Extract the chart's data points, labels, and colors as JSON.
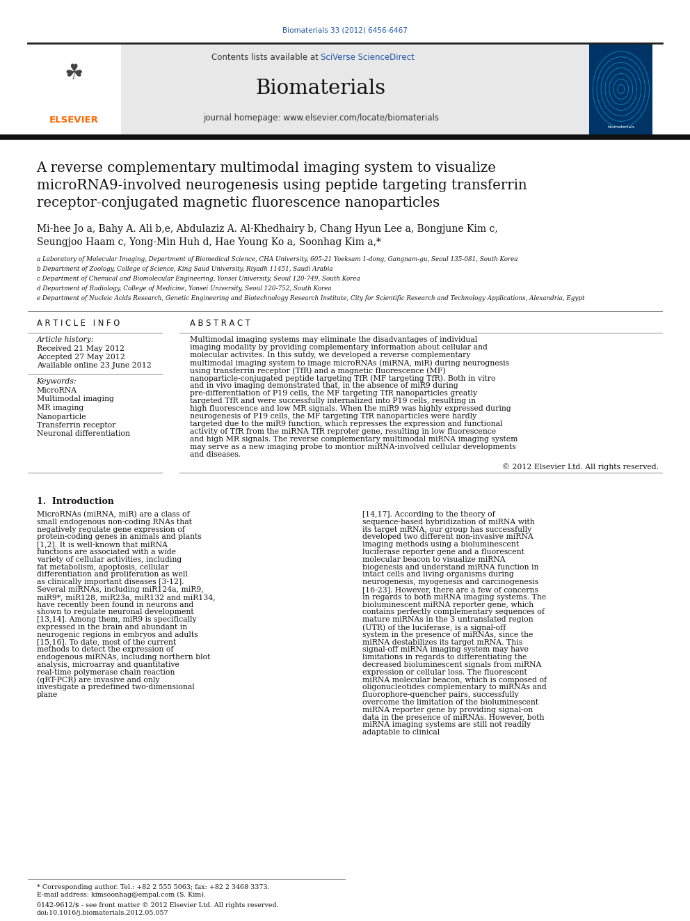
{
  "page_width": 9.92,
  "page_height": 13.23,
  "bg_color": "#ffffff",
  "journal_ref": "Biomaterials 33 (2012) 6456-6467",
  "journal_ref_color": "#2255aa",
  "header_bg": "#e8e8e8",
  "contents_text": "Contents lists available at ",
  "sciverse_text": "SciVerse ScienceDirect",
  "sciverse_color": "#2255aa",
  "journal_title": "Biomaterials",
  "journal_homepage": "journal homepage: www.elsevier.com/locate/biomaterials",
  "paper_title_line1": "A reverse complementary multimodal imaging system to visualize",
  "paper_title_line2": "microRNA9-involved neurogenesis using peptide targeting transferrin",
  "paper_title_line3": "receptor-conjugated magnetic fluorescence nanoparticles",
  "authors_line1": "Mi-hee Jo a, Bahy A. Ali b,e, Abdulaziz A. Al-Khedhairy b, Chang Hyun Lee a, Bongjune Kim c,",
  "authors_line2": "Seungjoo Haam c, Yong-Min Huh d, Hae Young Ko a, Soonhag Kim a,*",
  "aff_a": "a Laboratory of Molecular Imaging, Department of Biomedical Science, CHA University, 605-21 Yoeksam 1-dong, Gangnam-gu, Seoul 135-081, South Korea",
  "aff_b": "b Department of Zoology, College of Science, King Saud University, Riyadh 11451, Saudi Arabia",
  "aff_c": "c Department of Chemical and Biomolecular Engineering, Yonsei University, Seoul 120-749, South Korea",
  "aff_d": "d Department of Radiology, College of Medicine, Yonsei University, Seoul 120-752, South Korea",
  "aff_e": "e Department of Nucleic Acids Research, Genetic Engineering and Biotechnology Research Institute, City for Scientific Research and Technology Applications, Alexandria, Egypt",
  "article_info_header": "A R T I C L E   I N F O",
  "abstract_header": "A B S T R A C T",
  "article_history": "Article history:",
  "received": "Received 21 May 2012",
  "accepted": "Accepted 27 May 2012",
  "available": "Available online 23 June 2012",
  "keywords_header": "Keywords:",
  "keywords": [
    "MicroRNA",
    "Multimodal imaging",
    "MR imaging",
    "Nanoparticle",
    "Transferrin receptor",
    "Neuronal differentiation"
  ],
  "abstract_text": "Multimodal imaging systems may eliminate the disadvantages of individual imaging modality by providing complementary information about cellular and molecular activites. In this sutdy, we developed a reverse complementary multimodal imaging system to image microRNAs (miRNA, miR) during neurognesis using transferrin receptor (TfR) and a magnetic fluorescence (MF) nanoparticle-conjugated peptide targeting TfR (MF targeting TfR). Both in vitro and in vivo imaging demonstrated that, in the absence of miR9 during pre-differentiation of P19 cells, the MF targeting TfR nanoparticles greatly targeted TfR and were successfully internalized into P19 cells, resulting in high fluorescence and low MR signals. When the miR9 was highly expressed during neurogenesis of P19 cells, the MF targeting TfR nanoparticles were hardly targeted due to the miR9 function, which represses the expression and functional activity of TfR from the miRNA TfR reproter gene, resulting in low fluorescence and high MR signals. The reverse complementary multimodal miRNA imaging system may serve as a new imaging probe to montior miRNA-involved cellular developments and diseases.",
  "copyright": "© 2012 Elsevier Ltd. All rights reserved.",
  "intro_header": "1.  Introduction",
  "intro_text_left": "MicroRNAs (miRNA, miR) are a class of small endogenous non-coding RNAs that negatively regulate gene expression of protein-coding genes in animals and plants [1,2]. It is well-known that miRNA functions are associated with a wide variety of cellular activities, including fat metabolism, apoptosis, cellular differentiation and proliferation as well as clinically important diseases [3-12]. Several miRNAs, including miR124a, miR9, miR9*, miR128, miR23a, miR132 and miR134, have recently been found in neurons and shown to regulate neuronal development [13,14]. Among them, miR9 is specifically expressed in the brain and abundant in neurogenic regions in embryos and adults [15,16]. To date, most of the current methods to detect the expression of endogenous miRNAs, including northern blot analysis, microarray and quantitative real-time polymerase chain reaction (qRT-PCR) are invasive and only investigate a predefined two-dimensional plane",
  "intro_text_right": "[14,17]. According to the theory of sequence-based hybridization of miRNA with its target mRNA, our group has successfully developed two different non-invasive miRNA imaging methods using a bioluminescent luciferase reporter gene and a fluorescent molecular beacon to visualize miRNA biogenesis and understand miRNA function in intact cells and living organisms during neurogenesis, myogenesis and carcinogenesis [16-23]. However, there are a few of concerns in regards to both miRNA imaging systems. The bioluminescent miRNA reporter gene, which contains perfectly complementary sequences of mature miRNAs in the 3 untranslated region (UTR) of the luciferase, is a signal-off system in the presence of miRNAs, since the miRNA destabilizes its target mRNA. This signal-off miRNA imaging system may have limitations in regards to differentiating the decreased bioluminescent signals from miRNA expression or cellular loss. The fluorescent miRNA molecular beacon, which is composed of oligonucleotides complementary to miRNAs and fluorophore-quencher pairs, successfully overcome the limitation of the bioluminescent miRNA reporter gene by providing signal-on data in the presence of miRNAs. However, both miRNA imaging systems are still not readily adaptable to clinical",
  "footer_text": "* Corresponding author. Tel.: +82 2 555 5063; fax: +82 2 3468 3373.",
  "footer_email": "E-mail address: kimsoonhag@empal.com (S. Kim).",
  "footer_issn": "0142-9612/$ - see front matter © 2012 Elsevier Ltd. All rights reserved.",
  "footer_doi": "doi:10.1016/j.biomaterials.2012.05.057",
  "elsevier_color": "#FF6600",
  "divider_color": "#333333"
}
